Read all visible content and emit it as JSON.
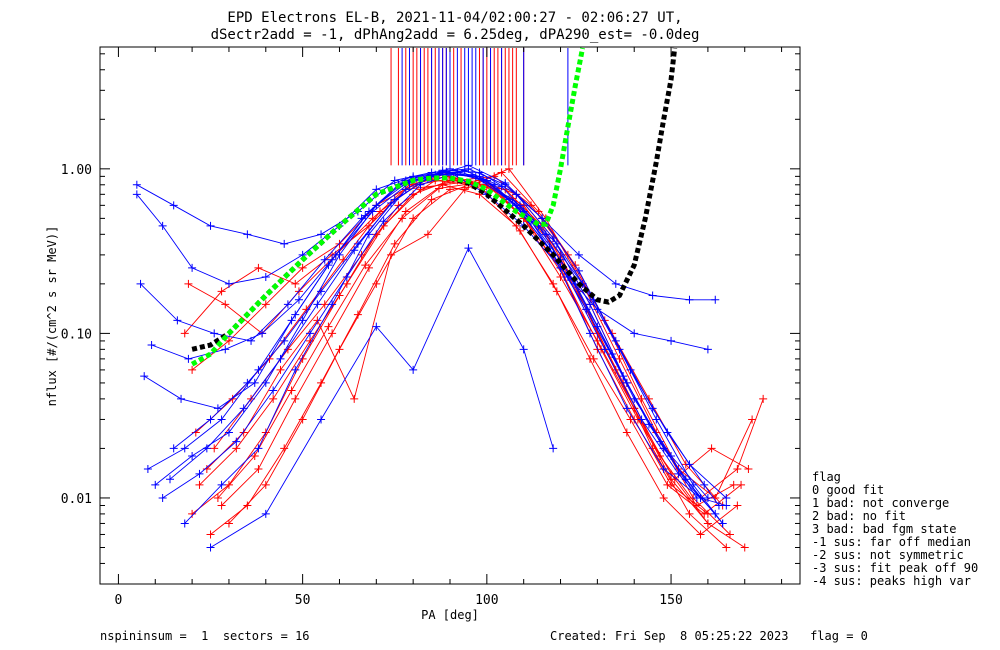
{
  "chart_data": {
    "type": "line",
    "title": "EPD Electrons EL-B, 2021-11-04/02:00:27 - 02:06:27 UT,",
    "subtitle": "dSectr2add = -1, dPhAng2add = 6.25deg, dPA290_est=  -0.0deg",
    "xlabel": "PA [deg]",
    "ylabel": "nflux [#/(cm^2 s sr MeV)]",
    "xlim": [
      -5,
      185
    ],
    "ylim": [
      0.003,
      5.5
    ],
    "yscale": "log",
    "x_ticks": [
      {
        "value": 0,
        "label": "0"
      },
      {
        "value": 50,
        "label": "50"
      },
      {
        "value": 100,
        "label": "100"
      },
      {
        "value": 150,
        "label": "150"
      }
    ],
    "y_ticks": [
      {
        "value": 0.01,
        "label": "0.01"
      },
      {
        "value": 0.1,
        "label": "0.10"
      },
      {
        "value": 1.0,
        "label": "1.00"
      }
    ],
    "colors": {
      "red": "#ff0000",
      "blue": "#0000ff",
      "fit_green": "#00ff00",
      "fit_black": "#000000"
    },
    "curves": [
      {
        "color": "black",
        "x": [
          20,
          25,
          30,
          40,
          50,
          60,
          70,
          80,
          85,
          90,
          95,
          100,
          110,
          118,
          125,
          130,
          133,
          136,
          140,
          143,
          146,
          148,
          150,
          151
        ],
        "y": [
          0.08,
          0.085,
          0.1,
          0.17,
          0.28,
          0.45,
          0.7,
          0.85,
          0.88,
          0.88,
          0.82,
          0.7,
          0.45,
          0.3,
          0.2,
          0.16,
          0.155,
          0.17,
          0.26,
          0.5,
          1.1,
          2.0,
          3.5,
          5.5
        ]
      },
      {
        "color": "green",
        "x": [
          20,
          25,
          30,
          40,
          50,
          60,
          70,
          80,
          85,
          90,
          95,
          100,
          108,
          114,
          116,
          118,
          120,
          122,
          124,
          126
        ],
        "y": [
          0.065,
          0.075,
          0.1,
          0.17,
          0.28,
          0.45,
          0.7,
          0.85,
          0.88,
          0.88,
          0.84,
          0.75,
          0.55,
          0.46,
          0.46,
          0.6,
          1.0,
          1.8,
          3.2,
          5.5
        ]
      }
    ],
    "lines_red": [
      {
        "x": [
          20,
          30,
          40,
          50,
          60,
          70,
          80,
          90,
          100,
          110,
          120,
          130,
          140,
          150,
          160
        ],
        "y": [
          0.008,
          0.012,
          0.025,
          0.07,
          0.17,
          0.4,
          0.7,
          0.85,
          0.8,
          0.5,
          0.25,
          0.08,
          0.03,
          0.012,
          0.008
        ]
      },
      {
        "x": [
          18,
          28,
          38,
          48,
          58,
          68,
          78,
          88,
          98,
          108,
          118,
          128,
          138,
          148,
          158,
          168
        ],
        "y": [
          0.1,
          0.18,
          0.25,
          0.2,
          0.3,
          0.45,
          0.75,
          0.8,
          0.7,
          0.45,
          0.2,
          0.07,
          0.025,
          0.01,
          0.006,
          0.009
        ]
      },
      {
        "x": [
          25,
          35,
          45,
          55,
          65,
          75,
          85,
          95,
          105,
          115,
          125,
          135,
          145,
          155,
          165
        ],
        "y": [
          0.006,
          0.009,
          0.02,
          0.05,
          0.13,
          0.35,
          0.65,
          0.8,
          0.75,
          0.45,
          0.18,
          0.06,
          0.02,
          0.008,
          0.005
        ]
      },
      {
        "x": [
          22,
          32,
          42,
          52,
          62,
          72,
          82,
          92,
          102,
          112,
          122,
          132,
          142,
          152,
          162,
          172
        ],
        "y": [
          0.012,
          0.02,
          0.04,
          0.09,
          0.2,
          0.45,
          0.75,
          0.85,
          0.9,
          0.6,
          0.3,
          0.12,
          0.04,
          0.015,
          0.01,
          0.03
        ]
      },
      {
        "x": [
          28,
          38,
          48,
          58,
          68,
          78,
          88,
          98,
          108,
          118,
          128,
          138,
          148,
          158,
          168,
          175
        ],
        "y": [
          0.009,
          0.015,
          0.04,
          0.1,
          0.25,
          0.55,
          0.8,
          0.85,
          0.7,
          0.38,
          0.15,
          0.05,
          0.02,
          0.01,
          0.015,
          0.04
        ]
      },
      {
        "x": [
          20,
          30,
          40,
          50,
          60,
          70,
          80,
          90,
          100,
          110,
          120,
          130,
          140,
          150,
          160
        ],
        "y": [
          0.06,
          0.09,
          0.15,
          0.25,
          0.35,
          0.6,
          0.8,
          0.95,
          0.85,
          0.5,
          0.22,
          0.09,
          0.035,
          0.014,
          0.007
        ]
      },
      {
        "x": [
          24,
          34,
          44,
          54,
          64,
          74,
          84,
          94,
          104,
          114,
          124,
          134,
          144,
          154,
          164
        ],
        "y": [
          0.015,
          0.025,
          0.06,
          0.12,
          0.04,
          0.3,
          0.4,
          0.75,
          0.95,
          0.55,
          0.26,
          0.1,
          0.04,
          0.016,
          0.009
        ]
      },
      {
        "x": [
          30,
          40,
          50,
          60,
          70,
          80,
          90,
          100,
          110,
          120,
          130,
          140,
          150,
          160,
          170
        ],
        "y": [
          0.007,
          0.012,
          0.03,
          0.08,
          0.2,
          0.5,
          0.75,
          0.8,
          0.6,
          0.3,
          0.1,
          0.035,
          0.013,
          0.007,
          0.005
        ]
      },
      {
        "x": [
          19,
          29,
          39,
          49,
          59,
          69,
          79,
          89,
          99,
          109,
          119,
          129,
          139,
          149,
          159,
          169
        ],
        "y": [
          0.2,
          0.15,
          0.1,
          0.18,
          0.3,
          0.5,
          0.8,
          0.9,
          0.75,
          0.42,
          0.18,
          0.07,
          0.03,
          0.012,
          0.008,
          0.012
        ]
      },
      {
        "x": [
          26,
          36,
          46,
          56,
          66,
          76,
          86,
          96,
          106,
          116,
          126,
          136,
          146,
          156,
          166
        ],
        "y": [
          0.02,
          0.04,
          0.08,
          0.15,
          0.3,
          0.6,
          0.85,
          0.8,
          1.0,
          0.5,
          0.2,
          0.07,
          0.025,
          0.01,
          0.006
        ]
      },
      {
        "x": [
          21,
          31,
          41,
          51,
          61,
          71,
          81,
          91,
          101,
          111,
          121,
          131,
          141,
          151,
          161,
          171
        ],
        "y": [
          0.025,
          0.04,
          0.07,
          0.14,
          0.28,
          0.55,
          0.8,
          0.88,
          0.78,
          0.48,
          0.22,
          0.08,
          0.03,
          0.013,
          0.02,
          0.015
        ]
      },
      {
        "x": [
          27,
          37,
          47,
          57,
          67,
          77,
          87,
          97,
          107,
          117,
          127,
          137,
          147,
          157,
          167
        ],
        "y": [
          0.01,
          0.018,
          0.045,
          0.11,
          0.26,
          0.5,
          0.76,
          0.82,
          0.66,
          0.36,
          0.14,
          0.05,
          0.018,
          0.009,
          0.012
        ]
      }
    ],
    "lines_blue": [
      {
        "x": [
          5,
          15,
          25,
          35,
          45,
          55,
          65,
          75,
          85,
          95,
          105,
          115,
          125,
          135,
          145,
          155,
          162
        ],
        "y": [
          0.8,
          0.6,
          0.45,
          0.4,
          0.35,
          0.4,
          0.55,
          0.85,
          0.95,
          1.0,
          0.8,
          0.5,
          0.3,
          0.2,
          0.17,
          0.16,
          0.16
        ]
      },
      {
        "x": [
          5,
          12,
          20,
          30,
          40,
          50,
          60,
          70,
          80,
          90,
          100,
          110,
          120,
          130,
          140,
          150,
          160
        ],
        "y": [
          0.7,
          0.45,
          0.25,
          0.2,
          0.22,
          0.3,
          0.45,
          0.75,
          0.9,
          0.95,
          0.7,
          0.45,
          0.25,
          0.14,
          0.1,
          0.09,
          0.08
        ]
      },
      {
        "x": [
          8,
          18,
          28,
          38,
          48,
          58,
          68,
          78,
          88,
          98,
          108,
          118,
          128,
          138,
          148,
          158,
          165
        ],
        "y": [
          0.015,
          0.02,
          0.03,
          0.06,
          0.13,
          0.28,
          0.55,
          0.85,
          0.95,
          0.9,
          0.6,
          0.3,
          0.1,
          0.035,
          0.015,
          0.01,
          0.009
        ]
      },
      {
        "x": [
          10,
          20,
          30,
          40,
          50,
          60,
          70,
          80,
          90,
          100,
          110,
          120,
          130,
          140,
          150,
          160
        ],
        "y": [
          0.012,
          0.018,
          0.025,
          0.05,
          0.12,
          0.3,
          0.6,
          0.88,
          1.0,
          0.85,
          0.55,
          0.28,
          0.11,
          0.04,
          0.018,
          0.01
        ]
      },
      {
        "x": [
          6,
          16,
          26,
          36,
          46,
          56,
          66,
          76,
          86,
          96,
          106,
          116,
          126,
          136,
          146,
          156,
          164
        ],
        "y": [
          0.2,
          0.12,
          0.1,
          0.09,
          0.15,
          0.28,
          0.5,
          0.8,
          0.92,
          0.92,
          0.65,
          0.4,
          0.2,
          0.08,
          0.03,
          0.012,
          0.007
        ]
      },
      {
        "x": [
          12,
          22,
          32,
          42,
          52,
          62,
          72,
          82,
          92,
          102,
          112,
          122,
          132,
          142,
          152,
          162
        ],
        "y": [
          0.01,
          0.014,
          0.022,
          0.045,
          0.1,
          0.22,
          0.48,
          0.8,
          0.95,
          0.8,
          0.48,
          0.22,
          0.08,
          0.03,
          0.014,
          0.008
        ]
      },
      {
        "x": [
          15,
          25,
          35,
          45,
          55,
          65,
          75,
          85,
          95,
          105,
          115,
          125,
          135,
          145,
          155,
          165
        ],
        "y": [
          0.02,
          0.03,
          0.05,
          0.09,
          0.18,
          0.35,
          0.65,
          0.9,
          1.05,
          0.82,
          0.5,
          0.24,
          0.09,
          0.035,
          0.016,
          0.01
        ]
      },
      {
        "x": [
          25,
          40,
          55,
          70,
          80,
          95,
          110,
          118
        ],
        "y": [
          0.005,
          0.008,
          0.03,
          0.11,
          0.06,
          0.33,
          0.08,
          0.02
        ]
      },
      {
        "x": [
          18,
          28,
          38,
          48,
          58,
          68,
          78,
          88,
          98,
          108,
          118,
          128,
          138,
          148,
          158
        ],
        "y": [
          0.007,
          0.012,
          0.02,
          0.06,
          0.15,
          0.4,
          0.75,
          0.98,
          0.95,
          0.7,
          0.38,
          0.15,
          0.05,
          0.02,
          0.01
        ]
      },
      {
        "x": [
          9,
          19,
          29,
          39,
          49,
          59,
          69,
          79,
          89,
          99,
          109,
          119,
          129,
          139,
          149,
          159,
          163
        ],
        "y": [
          0.085,
          0.07,
          0.08,
          0.1,
          0.16,
          0.3,
          0.55,
          0.82,
          0.96,
          0.86,
          0.6,
          0.35,
          0.16,
          0.06,
          0.025,
          0.012,
          0.009
        ]
      },
      {
        "x": [
          7,
          17,
          27,
          37,
          47,
          57,
          67,
          77,
          87,
          97,
          107,
          117,
          127,
          137,
          147,
          157
        ],
        "y": [
          0.055,
          0.04,
          0.035,
          0.05,
          0.12,
          0.26,
          0.52,
          0.82,
          0.93,
          0.9,
          0.62,
          0.33,
          0.14,
          0.055,
          0.022,
          0.01
        ]
      },
      {
        "x": [
          14,
          24,
          34,
          44,
          54,
          64,
          74,
          84,
          94,
          104,
          114,
          124,
          134,
          144,
          154,
          164
        ],
        "y": [
          0.013,
          0.02,
          0.035,
          0.07,
          0.15,
          0.32,
          0.62,
          0.88,
          0.98,
          0.78,
          0.45,
          0.2,
          0.075,
          0.028,
          0.013,
          0.007
        ]
      }
    ],
    "spikes_red_x": [
      74,
      76,
      78,
      80,
      81,
      82,
      83,
      84,
      85,
      86,
      87,
      88,
      89,
      90,
      91,
      93,
      98,
      99,
      100,
      101,
      102,
      103,
      104,
      105,
      106,
      107,
      108,
      110
    ],
    "spikes_blue_x": [
      77,
      79,
      82,
      85,
      87,
      88,
      89,
      90,
      92,
      94,
      95,
      96,
      97,
      99,
      101,
      104,
      110,
      122
    ],
    "legend": {
      "title": "flag",
      "entries": [
        " 0 good fit",
        " 1 bad: not converge",
        " 2 bad: no fit",
        " 3 bad: bad fgm state",
        "-1 sus: far off median",
        "-2 sus: not symmetric",
        "-3 sus: fit peak off 90",
        "-4 sus: peaks high var"
      ]
    },
    "footer_left": "nspininsum =  1  sectors = 16",
    "footer_right": "Created: Fri Sep  8 05:25:22 2023   flag = 0"
  }
}
